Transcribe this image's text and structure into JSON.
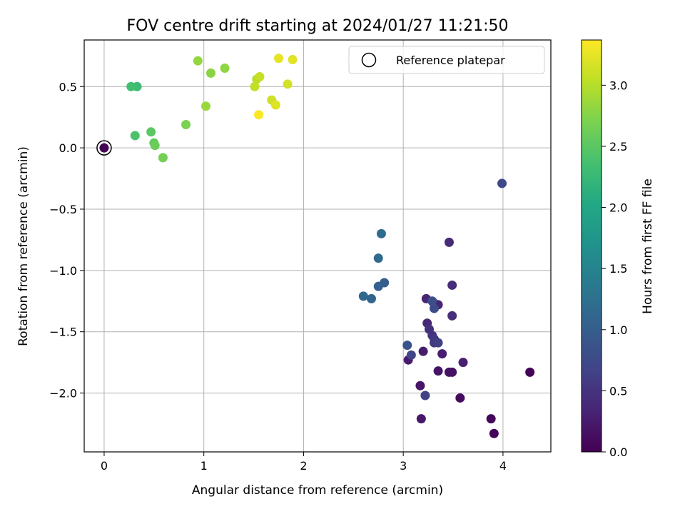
{
  "chart_data": {
    "type": "scatter",
    "title": "FOV centre drift starting at 2024/01/27 11:21:50",
    "xlabel": "Angular distance from reference (arcmin)",
    "ylabel": "Rotation from reference (arcmin)",
    "xlim": [
      -0.2,
      4.48
    ],
    "ylim": [
      -2.48,
      0.88
    ],
    "xticks": [
      0,
      1,
      2,
      3,
      4
    ],
    "yticks": [
      -2.0,
      -1.5,
      -1.0,
      -0.5,
      0.0,
      0.5
    ],
    "xtick_labels": [
      "0",
      "1",
      "2",
      "3",
      "4"
    ],
    "ytick_labels": [
      "−2.0",
      "−1.5",
      "−1.0",
      "−0.5",
      "0.0",
      "0.5"
    ],
    "grid": true,
    "colormap": "viridis",
    "colorbar": {
      "label": "Hours from first FF file",
      "range": [
        0.0,
        3.37
      ],
      "ticks": [
        0.0,
        0.5,
        1.0,
        1.5,
        2.0,
        2.5,
        3.0
      ],
      "tick_labels": [
        "0.0",
        "0.5",
        "1.0",
        "1.5",
        "2.0",
        "2.5",
        "3.0"
      ]
    },
    "legend": {
      "entries": [
        "Reference platepar"
      ],
      "position": "upper-right"
    },
    "reference_point": {
      "x": 0.0,
      "y": 0.0,
      "hours": 0.0
    },
    "points": [
      {
        "x": 0.0,
        "y": 0.0,
        "hours": 0.0
      },
      {
        "x": 4.27,
        "y": -1.83,
        "hours": 0.02
      },
      {
        "x": 3.91,
        "y": -2.33,
        "hours": 0.04
      },
      {
        "x": 3.88,
        "y": -2.21,
        "hours": 0.06
      },
      {
        "x": 3.57,
        "y": -2.04,
        "hours": 0.1
      },
      {
        "x": 3.46,
        "y": -1.83,
        "hours": 0.14
      },
      {
        "x": 3.49,
        "y": -1.83,
        "hours": 0.16
      },
      {
        "x": 3.35,
        "y": -1.82,
        "hours": 0.18
      },
      {
        "x": 3.17,
        "y": -1.94,
        "hours": 0.2
      },
      {
        "x": 3.18,
        "y": -2.21,
        "hours": 0.22
      },
      {
        "x": 3.05,
        "y": -1.73,
        "hours": 0.24
      },
      {
        "x": 3.2,
        "y": -1.66,
        "hours": 0.26
      },
      {
        "x": 3.39,
        "y": -1.68,
        "hours": 0.28
      },
      {
        "x": 3.6,
        "y": -1.75,
        "hours": 0.3
      },
      {
        "x": 3.3,
        "y": -1.26,
        "hours": 0.32
      },
      {
        "x": 3.35,
        "y": -1.28,
        "hours": 0.34
      },
      {
        "x": 3.23,
        "y": -1.23,
        "hours": 0.36
      },
      {
        "x": 3.24,
        "y": -1.43,
        "hours": 0.38
      },
      {
        "x": 3.46,
        "y": -0.77,
        "hours": 0.4
      },
      {
        "x": 3.49,
        "y": -1.12,
        "hours": 0.42
      },
      {
        "x": 3.49,
        "y": -1.37,
        "hours": 0.44
      },
      {
        "x": 3.26,
        "y": -1.48,
        "hours": 0.46
      },
      {
        "x": 3.29,
        "y": -1.53,
        "hours": 0.5
      },
      {
        "x": 3.31,
        "y": -1.56,
        "hours": 0.54
      },
      {
        "x": 3.31,
        "y": -1.59,
        "hours": 0.58
      },
      {
        "x": 3.35,
        "y": -1.59,
        "hours": 0.62
      },
      {
        "x": 3.22,
        "y": -2.02,
        "hours": 0.66
      },
      {
        "x": 3.08,
        "y": -1.69,
        "hours": 0.7
      },
      {
        "x": 3.99,
        "y": -0.29,
        "hours": 0.72
      },
      {
        "x": 3.31,
        "y": -1.31,
        "hours": 0.76
      },
      {
        "x": 3.29,
        "y": -1.25,
        "hours": 0.8
      },
      {
        "x": 3.04,
        "y": -1.61,
        "hours": 0.86
      },
      {
        "x": 2.81,
        "y": -1.1,
        "hours": 1.0
      },
      {
        "x": 2.75,
        "y": -1.13,
        "hours": 1.04
      },
      {
        "x": 2.68,
        "y": -1.23,
        "hours": 1.08
      },
      {
        "x": 2.6,
        "y": -1.21,
        "hours": 1.12
      },
      {
        "x": 2.75,
        "y": -0.9,
        "hours": 1.16
      },
      {
        "x": 2.78,
        "y": -0.7,
        "hours": 1.2
      },
      {
        "x": 0.33,
        "y": 0.5,
        "hours": 2.3
      },
      {
        "x": 0.27,
        "y": 0.5,
        "hours": 2.35
      },
      {
        "x": 0.31,
        "y": 0.1,
        "hours": 2.4
      },
      {
        "x": 0.47,
        "y": 0.13,
        "hours": 2.5
      },
      {
        "x": 0.5,
        "y": 0.04,
        "hours": 2.55
      },
      {
        "x": 0.51,
        "y": 0.02,
        "hours": 2.6
      },
      {
        "x": 0.59,
        "y": -0.08,
        "hours": 2.65
      },
      {
        "x": 0.82,
        "y": 0.19,
        "hours": 2.7
      },
      {
        "x": 1.07,
        "y": 0.61,
        "hours": 2.78
      },
      {
        "x": 1.21,
        "y": 0.65,
        "hours": 2.8
      },
      {
        "x": 0.94,
        "y": 0.71,
        "hours": 2.82
      },
      {
        "x": 1.02,
        "y": 0.34,
        "hours": 2.85
      },
      {
        "x": 1.53,
        "y": 0.56,
        "hours": 3.0
      },
      {
        "x": 1.51,
        "y": 0.5,
        "hours": 3.05
      },
      {
        "x": 1.56,
        "y": 0.58,
        "hours": 3.08
      },
      {
        "x": 1.68,
        "y": 0.39,
        "hours": 3.12
      },
      {
        "x": 1.84,
        "y": 0.52,
        "hours": 3.15
      },
      {
        "x": 1.72,
        "y": 0.35,
        "hours": 3.2
      },
      {
        "x": 1.89,
        "y": 0.72,
        "hours": 3.22
      },
      {
        "x": 1.75,
        "y": 0.73,
        "hours": 3.25
      },
      {
        "x": 1.55,
        "y": 0.27,
        "hours": 3.35
      }
    ]
  }
}
